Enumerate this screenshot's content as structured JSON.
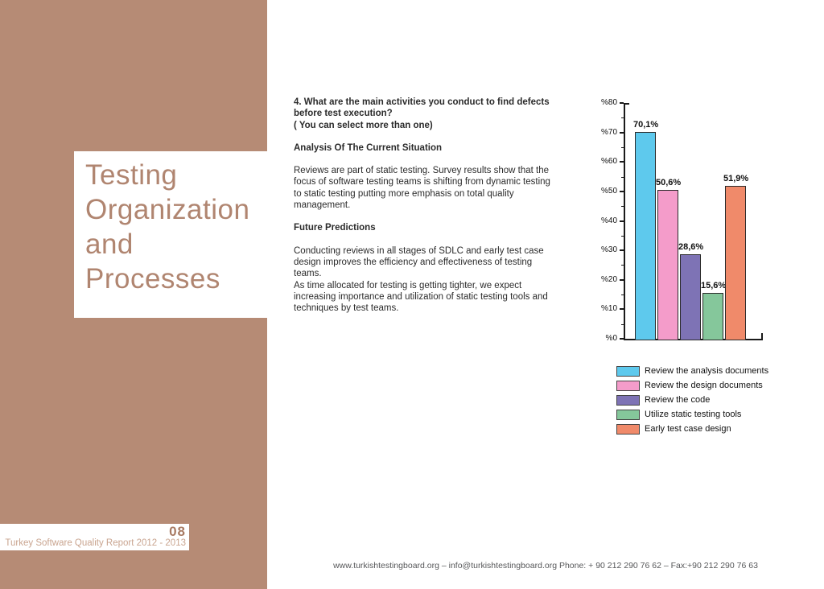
{
  "sidebar": {
    "color": "#b68b75",
    "title": "Testing Organization and Processes",
    "title_lines": [
      "Testing",
      "Organization",
      "and",
      "Processes"
    ]
  },
  "main": {
    "question": [
      "4. What are the main activities you conduct to find defects before test execution?",
      "( You can select more than one)"
    ],
    "section1_heading": "Analysis Of The Current Situation",
    "section1_body": "Reviews are part of static testing. Survey results show that the focus of software testing teams is shifting from dynamic testing to static testing putting more emphasis on total quality management.",
    "section2_heading": "Future Predictions",
    "section2_body": [
      "Conducting reviews in all stages of SDLC and early test case design improves the efficiency and effectiveness of testing teams.",
      "As time allocated for testing is getting tighter, we expect increasing importance and utilization of static testing tools and techniques by test teams."
    ]
  },
  "chart_data": {
    "type": "bar",
    "title": "",
    "categories": [
      "Review the analysis documents",
      "Review the design documents",
      "Review the code",
      "Utilize static testing tools",
      "Early test case design"
    ],
    "values": [
      70.1,
      50.6,
      28.6,
      15.6,
      51.9
    ],
    "value_labels": [
      "70,1%",
      "50,6%",
      "28,6%",
      "15,6%",
      "51,9%"
    ],
    "colors": [
      "#5ec9ed",
      "#f49cca",
      "#7e73b5",
      "#85c79b",
      "#f08a6a"
    ],
    "bar_border_color": "#2b2b2b",
    "axis_color": "#1a1a1a",
    "ylim": [
      0,
      80
    ],
    "ytick_step": 10,
    "yminor_step": 5,
    "ytick_labels": [
      "%0",
      "%10",
      "%20",
      "%30",
      "%40",
      "%50",
      "%60",
      "%70",
      "%80"
    ],
    "grid": false,
    "legend_position": "below-right",
    "legend": [
      "Review the analysis documents",
      "Review the design documents",
      "Review the code",
      "Utilize static testing tools",
      "Early test case design"
    ]
  },
  "footer_left": {
    "page_number": "08",
    "report_title": "Turkey Software Quality Report 2012 - 2013"
  },
  "footer_bottom": {
    "text": "www.turkishtestingboard.org – info@turkishtestingboard.org Phone: + 90 212 290 76 62 – Fax:+90 212 290 76 63"
  }
}
